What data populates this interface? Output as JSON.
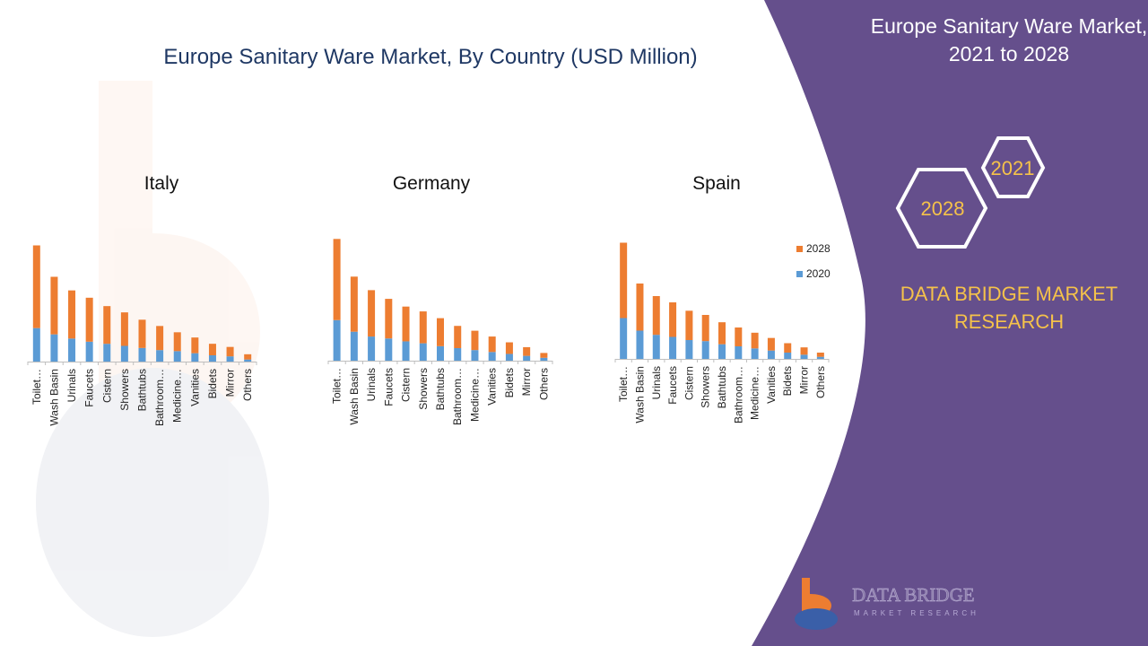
{
  "page": {
    "title": "Europe Sanitary Ware Market, By Country (USD Million)"
  },
  "sidebar": {
    "title_line1": "Europe Sanitary Ware Market,",
    "title_line2": "2021 to 2028",
    "hex_year_top": "2021",
    "hex_year_bottom": "2028",
    "brand_line1": "DATA BRIDGE MARKET",
    "brand_line2": "RESEARCH",
    "logo_name": "DATA BRIDGE",
    "logo_sub": "MARKET RESEARCH"
  },
  "colors": {
    "series_2020": "#5b9bd5",
    "series_2028": "#ed7d31",
    "panel": "#654f8c",
    "accent_gold": "#f5c24a",
    "title_blue": "#1f3864"
  },
  "chart_data": [
    {
      "type": "bar",
      "stacked": true,
      "title": "Italy",
      "categories": [
        "Toilet…",
        "Wash Basin",
        "Urinals",
        "Faucets",
        "Cistern",
        "Showers",
        "Bathtubs",
        "Bathroom…",
        "Medicine…",
        "Vanities",
        "Bidets",
        "Mirror",
        "Others"
      ],
      "series": [
        {
          "name": "2020",
          "values": [
            32,
            26,
            22,
            19,
            17,
            15,
            13,
            11,
            10,
            8,
            6,
            5,
            2
          ]
        },
        {
          "name": "2028",
          "values": [
            79,
            55,
            46,
            42,
            36,
            32,
            27,
            23,
            18,
            15,
            11,
            9,
            5
          ]
        }
      ],
      "ylim": [
        0,
        120
      ]
    },
    {
      "type": "bar",
      "stacked": true,
      "title": "Germany",
      "categories": [
        "Toilet…",
        "Wash Basin",
        "Urinals",
        "Faucets",
        "Cistern",
        "Showers",
        "Bathtubs",
        "Bathroom…",
        "Medicine…",
        "Vanities",
        "Bidets",
        "Mirror",
        "Others"
      ],
      "series": [
        {
          "name": "2020",
          "values": [
            42,
            30,
            25,
            23,
            20,
            18,
            15,
            13,
            11,
            9,
            7,
            5,
            3
          ]
        },
        {
          "name": "2028",
          "values": [
            84,
            57,
            48,
            41,
            36,
            33,
            29,
            23,
            20,
            16,
            12,
            9,
            5
          ]
        }
      ],
      "ylim": [
        0,
        130
      ]
    },
    {
      "type": "bar",
      "stacked": true,
      "title": "Spain",
      "categories": [
        "Toilet…",
        "Wash Basin",
        "Urinals",
        "Faucets",
        "Cistern",
        "Showers",
        "Bathtubs",
        "Bathroom…",
        "Medicine…",
        "Vanities",
        "Bidets",
        "Mirror",
        "Others"
      ],
      "series": [
        {
          "name": "2020",
          "values": [
            39,
            27,
            23,
            21,
            18,
            17,
            14,
            12,
            10,
            8,
            6,
            4,
            2
          ]
        },
        {
          "name": "2028",
          "values": [
            72,
            45,
            37,
            33,
            28,
            25,
            21,
            18,
            15,
            12,
            9,
            7,
            4
          ]
        }
      ],
      "ylim": [
        0,
        120
      ],
      "legend": "right"
    }
  ]
}
